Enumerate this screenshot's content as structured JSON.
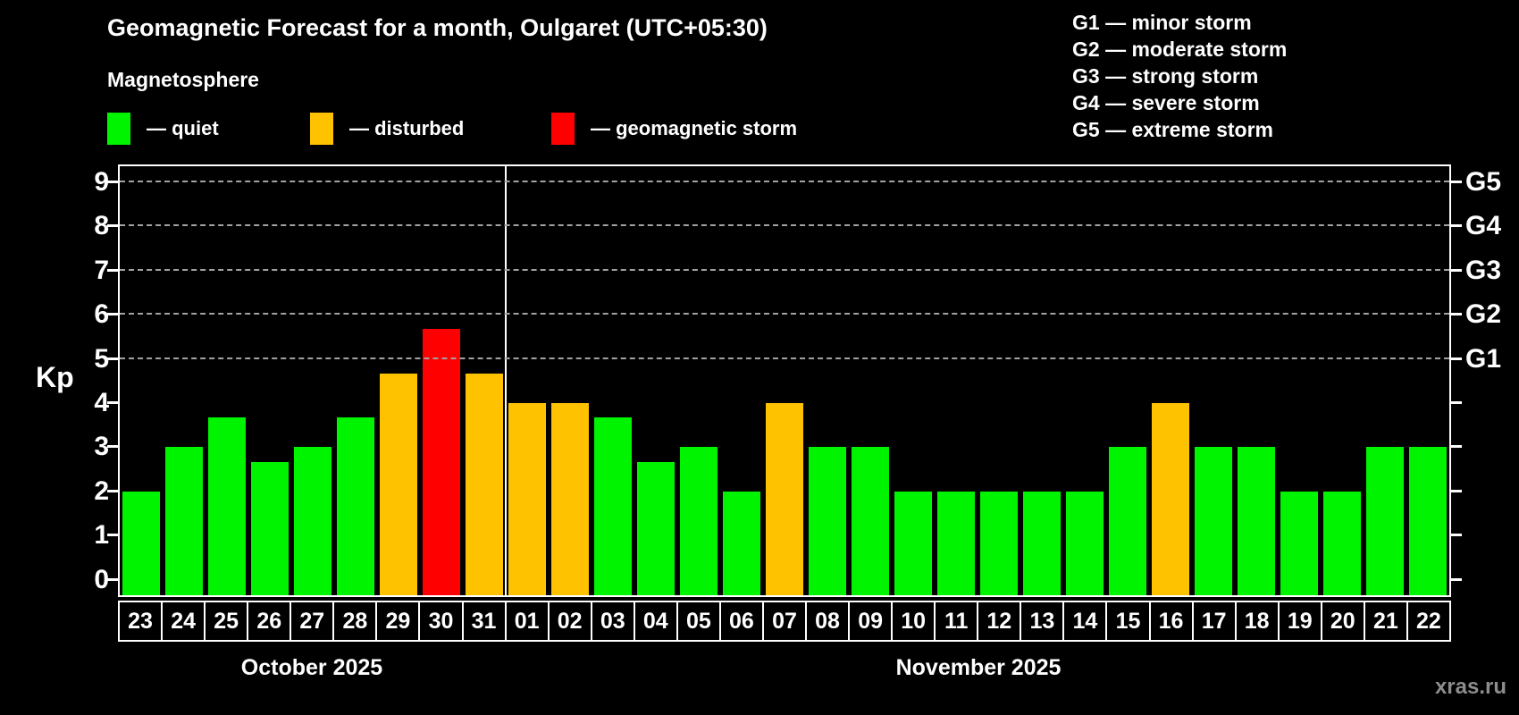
{
  "header": {
    "title": "Geomagnetic Forecast for a month, Oulgaret (UTC+05:30)",
    "subtitle": "Magnetosphere"
  },
  "bar_legend": [
    {
      "status": "quiet",
      "label": "— quiet",
      "color": "#00f400"
    },
    {
      "status": "disturbed",
      "label": "— disturbed",
      "color": "#ffc200"
    },
    {
      "status": "storm",
      "label": "— geomagnetic storm",
      "color": "#ff0000"
    }
  ],
  "g_legend": [
    "G1 — minor storm",
    "G2 — moderate storm",
    "G3 — strong storm",
    "G4 — severe storm",
    "G5 — extreme storm"
  ],
  "months": [
    {
      "label": "October 2025",
      "days": 9
    },
    {
      "label": "November 2025",
      "days": 22
    }
  ],
  "watermark": "xras.ru",
  "colors": {
    "background": "#000000",
    "axis": "#ffffff",
    "gridline": "#a2a2a2",
    "watermark": "#8d8d8d"
  },
  "chart_data": {
    "type": "bar",
    "title": "Geomagnetic Forecast for a month, Oulgaret (UTC+05:30)",
    "xlabel": "",
    "ylabel": "Kp",
    "ylim": [
      0,
      9
    ],
    "grid": "dashed horizontal at Kp 5-9 only",
    "legend_position": "top-left (bar colors), top-right (G scale)",
    "categories": [
      "23",
      "24",
      "25",
      "26",
      "27",
      "28",
      "29",
      "30",
      "31",
      "01",
      "02",
      "03",
      "04",
      "05",
      "06",
      "07",
      "08",
      "09",
      "10",
      "11",
      "12",
      "13",
      "14",
      "15",
      "16",
      "17",
      "18",
      "19",
      "20",
      "21",
      "22"
    ],
    "values": [
      2.0,
      3.0,
      3.67,
      2.67,
      3.0,
      3.67,
      4.67,
      5.67,
      4.67,
      4.0,
      4.0,
      3.67,
      2.67,
      3.0,
      2.0,
      4.0,
      3.0,
      3.0,
      2.0,
      2.0,
      2.0,
      2.0,
      2.0,
      3.0,
      4.0,
      3.0,
      3.0,
      2.0,
      2.0,
      3.0,
      3.0
    ],
    "status": [
      "quiet",
      "quiet",
      "quiet",
      "quiet",
      "quiet",
      "quiet",
      "disturbed",
      "storm",
      "disturbed",
      "disturbed",
      "disturbed",
      "quiet",
      "quiet",
      "quiet",
      "quiet",
      "disturbed",
      "quiet",
      "quiet",
      "quiet",
      "quiet",
      "quiet",
      "quiet",
      "quiet",
      "quiet",
      "disturbed",
      "quiet",
      "quiet",
      "quiet",
      "quiet",
      "quiet",
      "quiet"
    ],
    "series_colors": {
      "quiet": "#00f400",
      "disturbed": "#ffc200",
      "storm": "#ff0000"
    },
    "y_ticks": [
      0,
      1,
      2,
      3,
      4,
      5,
      6,
      7,
      8,
      9
    ],
    "gridlines": [
      5,
      6,
      7,
      8,
      9
    ],
    "right_axis_labels": [
      {
        "kp": 5,
        "label": "G1"
      },
      {
        "kp": 6,
        "label": "G2"
      },
      {
        "kp": 7,
        "label": "G3"
      },
      {
        "kp": 8,
        "label": "G4"
      },
      {
        "kp": 9,
        "label": "G5"
      }
    ]
  }
}
